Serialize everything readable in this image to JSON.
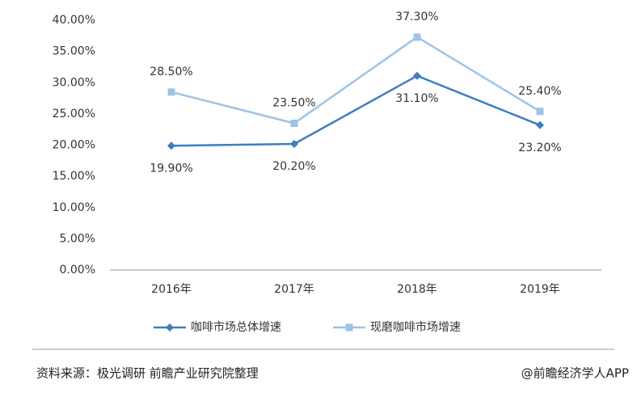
{
  "chart_data": {
    "type": "line",
    "categories": [
      "2016年",
      "2017年",
      "2018年",
      "2019年"
    ],
    "series": [
      {
        "name": "咖啡市场总体增速",
        "color": "#3f7cc2",
        "marker": "diamond",
        "values": [
          19.9,
          20.2,
          31.1,
          23.2
        ],
        "value_labels": [
          "19.90%",
          "20.20%",
          "31.10%",
          "23.20%"
        ]
      },
      {
        "name": "现磨咖啡市场增速",
        "color": "#9dc3e6",
        "marker": "square",
        "values": [
          28.5,
          23.5,
          37.3,
          25.4
        ],
        "value_labels": [
          "28.50%",
          "23.50%",
          "37.30%",
          "25.40%"
        ]
      }
    ],
    "ylim": [
      0,
      40
    ],
    "yticks": [
      {
        "value": 0,
        "label": "0.00%"
      },
      {
        "value": 5,
        "label": "5.00%"
      },
      {
        "value": 10,
        "label": "10.00%"
      },
      {
        "value": 15,
        "label": "15.00%"
      },
      {
        "value": 20,
        "label": "20.00%"
      },
      {
        "value": 25,
        "label": "25.00%"
      },
      {
        "value": 30,
        "label": "30.00%"
      },
      {
        "value": 35,
        "label": "35.00%"
      },
      {
        "value": 40,
        "label": "40.00%"
      }
    ],
    "grid": false,
    "legend": "bottom"
  },
  "footer": {
    "source": "资料来源：极光调研 前瞻产业研究院整理",
    "brand": "@前瞻经济学人APP"
  }
}
